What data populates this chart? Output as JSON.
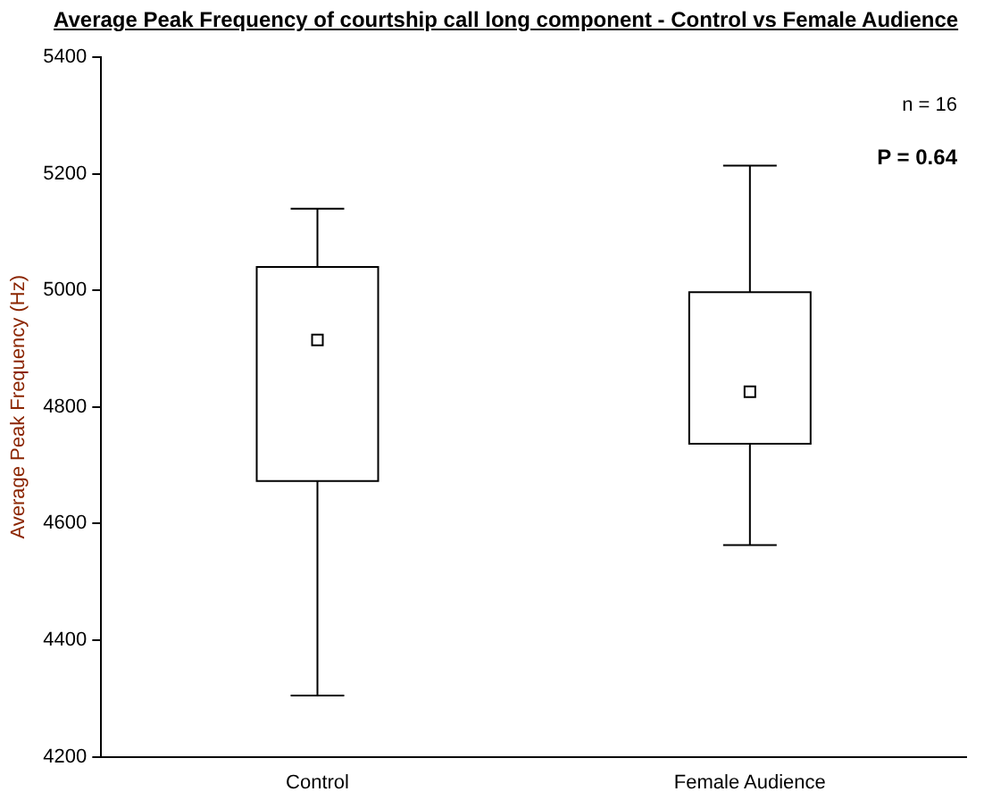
{
  "chart_data": {
    "type": "box",
    "title": "Average Peak Frequency of courtship call long component - Control vs Female Audience",
    "ylabel": "Average Peak Frequency (Hz)",
    "categories": [
      "Control",
      "Female Audience"
    ],
    "boxes": [
      {
        "low": 4305,
        "q1": 4673,
        "median": 4915,
        "q3": 5040,
        "high": 5140
      },
      {
        "low": 4563,
        "q1": 4737,
        "median": 4826,
        "q3": 4997,
        "high": 5214
      }
    ],
    "color": "#000000",
    "ylim": [
      4200,
      5400
    ],
    "yticks": [
      4200,
      4400,
      4600,
      4800,
      5000,
      5200,
      5400
    ],
    "annotations": [
      "n = 16",
      "P = 0.64"
    ]
  }
}
